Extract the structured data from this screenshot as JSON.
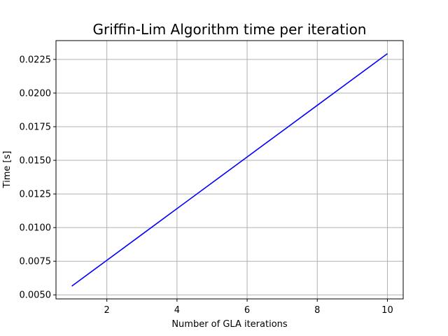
{
  "chart_data": {
    "type": "line",
    "title": "Griffin-Lim Algorithm time per iteration",
    "xlabel": "Number of GLA iterations",
    "ylabel": "Time [s]",
    "xlim": [
      0.55,
      10.45
    ],
    "ylim": [
      0.0047,
      0.0239
    ],
    "xticks": [
      2,
      4,
      6,
      8,
      10
    ],
    "xtick_labels": [
      "2",
      "4",
      "6",
      "8",
      "10"
    ],
    "yticks": [
      0.005,
      0.0075,
      0.01,
      0.0125,
      0.015,
      0.0175,
      0.02,
      0.0225
    ],
    "ytick_labels": [
      "0.0050",
      "0.0075",
      "0.0100",
      "0.0125",
      "0.0150",
      "0.0175",
      "0.0200",
      "0.0225"
    ],
    "grid": true,
    "series": [
      {
        "color": "#0000ff",
        "x": [
          1,
          2,
          3,
          4,
          5,
          6,
          7,
          8,
          9,
          10
        ],
        "values": [
          0.00565,
          0.00757,
          0.00949,
          0.01141,
          0.01333,
          0.01525,
          0.01717,
          0.01909,
          0.02101,
          0.02293
        ]
      }
    ]
  }
}
